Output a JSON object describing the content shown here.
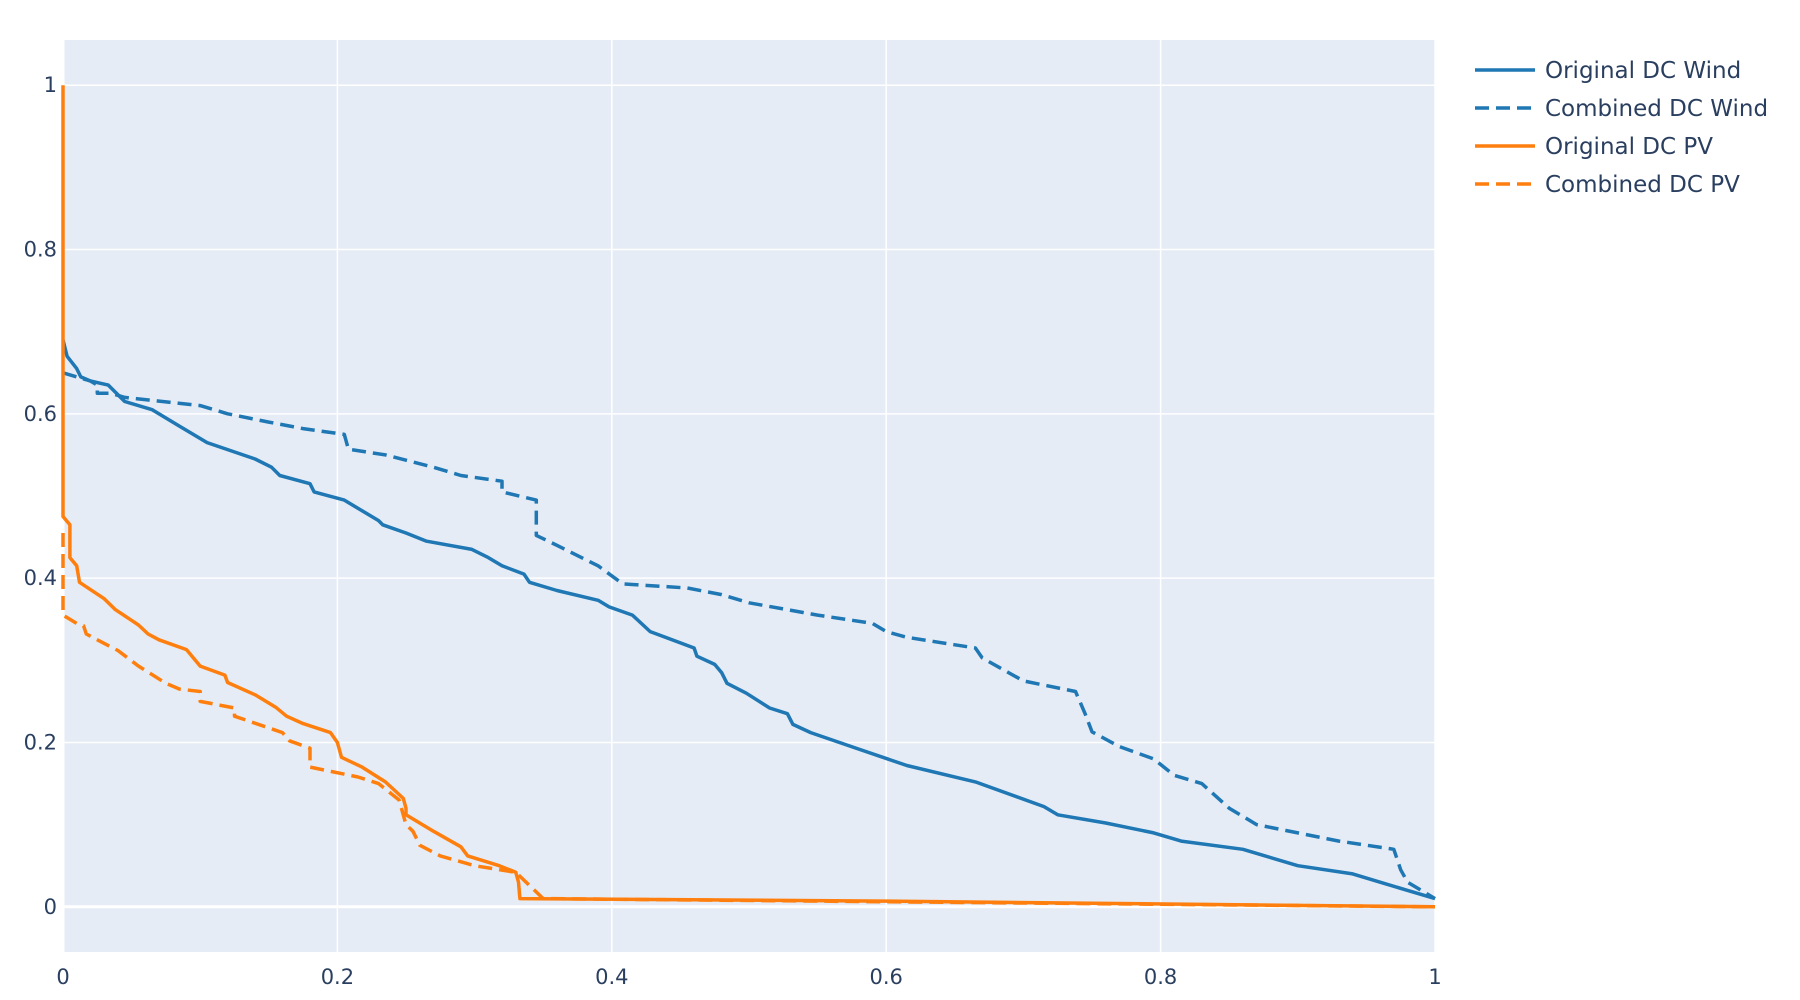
{
  "chart_data": {
    "type": "line",
    "title": "",
    "xlabel": "",
    "ylabel": "",
    "xlim": [
      0,
      1
    ],
    "ylim": [
      -0.055,
      1.055
    ],
    "grid": true,
    "legend_position": "right-top",
    "x_ticks": [
      {
        "value": 0,
        "label": "0"
      },
      {
        "value": 0.2,
        "label": "0.2"
      },
      {
        "value": 0.4,
        "label": "0.4"
      },
      {
        "value": 0.6,
        "label": "0.6"
      },
      {
        "value": 0.8,
        "label": "0.8"
      },
      {
        "value": 1,
        "label": "1"
      }
    ],
    "y_ticks": [
      {
        "value": 0,
        "label": "0"
      },
      {
        "value": 0.2,
        "label": "0.2"
      },
      {
        "value": 0.4,
        "label": "0.4"
      },
      {
        "value": 0.6,
        "label": "0.6"
      },
      {
        "value": 0.8,
        "label": "0.8"
      },
      {
        "value": 1,
        "label": "1"
      }
    ],
    "colors": {
      "plot_bg": "#e5ecf6",
      "grid": "#ffffff",
      "text": "#2a3f5f",
      "wind": "#1f77b4",
      "pv": "#ff7f0e"
    },
    "series": [
      {
        "name": "Original DC Wind",
        "color": "#1f77b4",
        "dash": "solid",
        "x": [
          0,
          0.003,
          0.01,
          0.013,
          0.02,
          0.033,
          0.045,
          0.065,
          0.085,
          0.105,
          0.14,
          0.152,
          0.158,
          0.18,
          0.183,
          0.205,
          0.22,
          0.23,
          0.233,
          0.25,
          0.265,
          0.298,
          0.31,
          0.32,
          0.336,
          0.34,
          0.36,
          0.39,
          0.398,
          0.415,
          0.428,
          0.46,
          0.462,
          0.475,
          0.48,
          0.484,
          0.498,
          0.515,
          0.528,
          0.532,
          0.545,
          0.58,
          0.615,
          0.665,
          0.715,
          0.725,
          0.76,
          0.795,
          0.815,
          0.86,
          0.9,
          0.94,
          0.96,
          0.98,
          1
        ],
        "y": [
          0.69,
          0.67,
          0.655,
          0.645,
          0.64,
          0.635,
          0.615,
          0.605,
          0.585,
          0.565,
          0.545,
          0.535,
          0.525,
          0.515,
          0.505,
          0.495,
          0.48,
          0.47,
          0.465,
          0.455,
          0.445,
          0.435,
          0.425,
          0.415,
          0.405,
          0.395,
          0.385,
          0.373,
          0.365,
          0.355,
          0.335,
          0.315,
          0.305,
          0.295,
          0.285,
          0.272,
          0.26,
          0.242,
          0.235,
          0.222,
          0.212,
          0.192,
          0.172,
          0.152,
          0.122,
          0.112,
          0.102,
          0.09,
          0.08,
          0.07,
          0.05,
          0.04,
          0.03,
          0.02,
          0.01
        ]
      },
      {
        "name": "Combined DC Wind",
        "color": "#1f77b4",
        "dash": "dashed",
        "x": [
          0,
          0.02,
          0.025,
          0.025,
          0.035,
          0.045,
          0.1,
          0.12,
          0.15,
          0.175,
          0.205,
          0.208,
          0.235,
          0.27,
          0.29,
          0.32,
          0.32,
          0.345,
          0.345,
          0.36,
          0.39,
          0.408,
          0.455,
          0.48,
          0.5,
          0.55,
          0.59,
          0.6,
          0.615,
          0.665,
          0.67,
          0.7,
          0.738,
          0.745,
          0.75,
          0.77,
          0.795,
          0.81,
          0.83,
          0.85,
          0.87,
          0.9,
          0.93,
          0.97,
          0.975,
          0.98,
          0.99,
          1
        ],
        "y": [
          0.65,
          0.64,
          0.635,
          0.625,
          0.625,
          0.62,
          0.61,
          0.6,
          0.59,
          0.582,
          0.575,
          0.557,
          0.55,
          0.535,
          0.525,
          0.518,
          0.505,
          0.495,
          0.452,
          0.44,
          0.415,
          0.393,
          0.388,
          0.38,
          0.37,
          0.355,
          0.345,
          0.335,
          0.328,
          0.315,
          0.303,
          0.275,
          0.262,
          0.235,
          0.213,
          0.195,
          0.18,
          0.16,
          0.15,
          0.12,
          0.1,
          0.09,
          0.08,
          0.07,
          0.045,
          0.03,
          0.02,
          0.01
        ]
      },
      {
        "name": "Original DC PV",
        "color": "#ff7f0e",
        "dash": "solid",
        "x": [
          0,
          0,
          0.005,
          0.005,
          0.01,
          0.012,
          0.03,
          0.038,
          0.055,
          0.062,
          0.07,
          0.09,
          0.1,
          0.118,
          0.12,
          0.14,
          0.155,
          0.163,
          0.175,
          0.195,
          0.2,
          0.203,
          0.218,
          0.235,
          0.248,
          0.25,
          0.25,
          0.27,
          0.29,
          0.295,
          0.318,
          0.33,
          0.332,
          0.333,
          0.6,
          1
        ],
        "y": [
          1.0,
          0.475,
          0.465,
          0.425,
          0.415,
          0.395,
          0.375,
          0.362,
          0.343,
          0.332,
          0.325,
          0.313,
          0.293,
          0.282,
          0.273,
          0.258,
          0.243,
          0.232,
          0.223,
          0.212,
          0.2,
          0.182,
          0.17,
          0.152,
          0.132,
          0.12,
          0.112,
          0.092,
          0.073,
          0.062,
          0.05,
          0.042,
          0.03,
          0.01,
          0.007,
          0.0
        ]
      },
      {
        "name": "Combined DC PV",
        "color": "#ff7f0e",
        "dash": "dashed",
        "x": [
          0,
          0,
          0.005,
          0.01,
          0.015,
          0.017,
          0.025,
          0.04,
          0.055,
          0.075,
          0.085,
          0.1,
          0.1,
          0.125,
          0.125,
          0.16,
          0.165,
          0.18,
          0.18,
          0.215,
          0.23,
          0.245,
          0.25,
          0.255,
          0.258,
          0.26,
          0.275,
          0.3,
          0.33,
          0.35,
          1
        ],
        "y": [
          0.455,
          0.355,
          0.35,
          0.345,
          0.342,
          0.332,
          0.325,
          0.312,
          0.293,
          0.272,
          0.265,
          0.262,
          0.25,
          0.242,
          0.232,
          0.212,
          0.202,
          0.193,
          0.17,
          0.158,
          0.15,
          0.13,
          0.1,
          0.092,
          0.082,
          0.075,
          0.062,
          0.05,
          0.042,
          0.01,
          0.0
        ]
      }
    ]
  }
}
